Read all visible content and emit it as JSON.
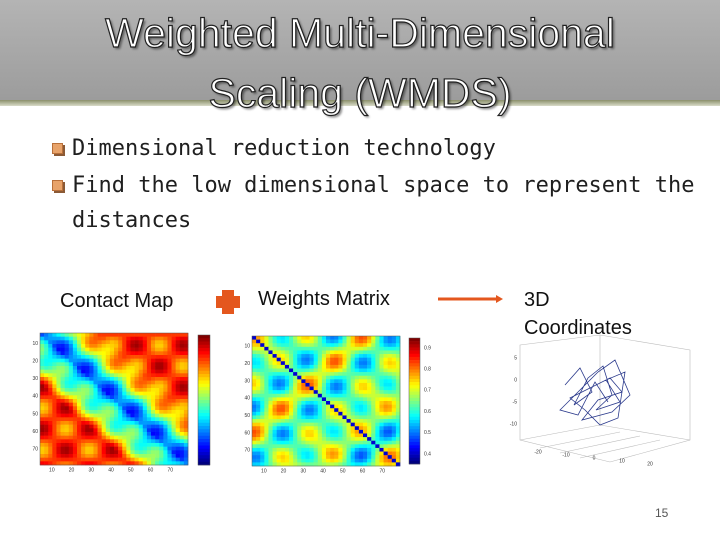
{
  "title": {
    "lines": [
      "Weighted Multi-Dimensional",
      "Scaling (WMDS)"
    ]
  },
  "bullets": [
    "Dimensional reduction technology",
    "Find the low dimensional space to represent the distances"
  ],
  "flow": {
    "inputs": [
      "Contact Map",
      "Weights Matrix"
    ],
    "output": "3D Coordinates"
  },
  "figures": {
    "contact_map": {
      "y_ticks": [
        "10",
        "20",
        "30",
        "40",
        "50",
        "60",
        "70"
      ],
      "x_ticks": [
        "10",
        "20",
        "30",
        "40",
        "50",
        "60",
        "70"
      ]
    },
    "weights_matrix": {
      "y_ticks": [
        "10",
        "20",
        "30",
        "40",
        "50",
        "60",
        "70"
      ],
      "x_ticks": [
        "10",
        "20",
        "30",
        "40",
        "50",
        "60",
        "70"
      ],
      "colorbar_ticks": [
        "0.9",
        "0.8",
        "0.7",
        "0.6",
        "0.5",
        "0.4"
      ]
    },
    "coordinates_3d": {
      "z_ticks": [
        "5",
        "0",
        "-5",
        "-10"
      ],
      "x_ticks": [
        "-20",
        "-10",
        "0",
        "10",
        "20"
      ]
    }
  },
  "page_number": "15"
}
